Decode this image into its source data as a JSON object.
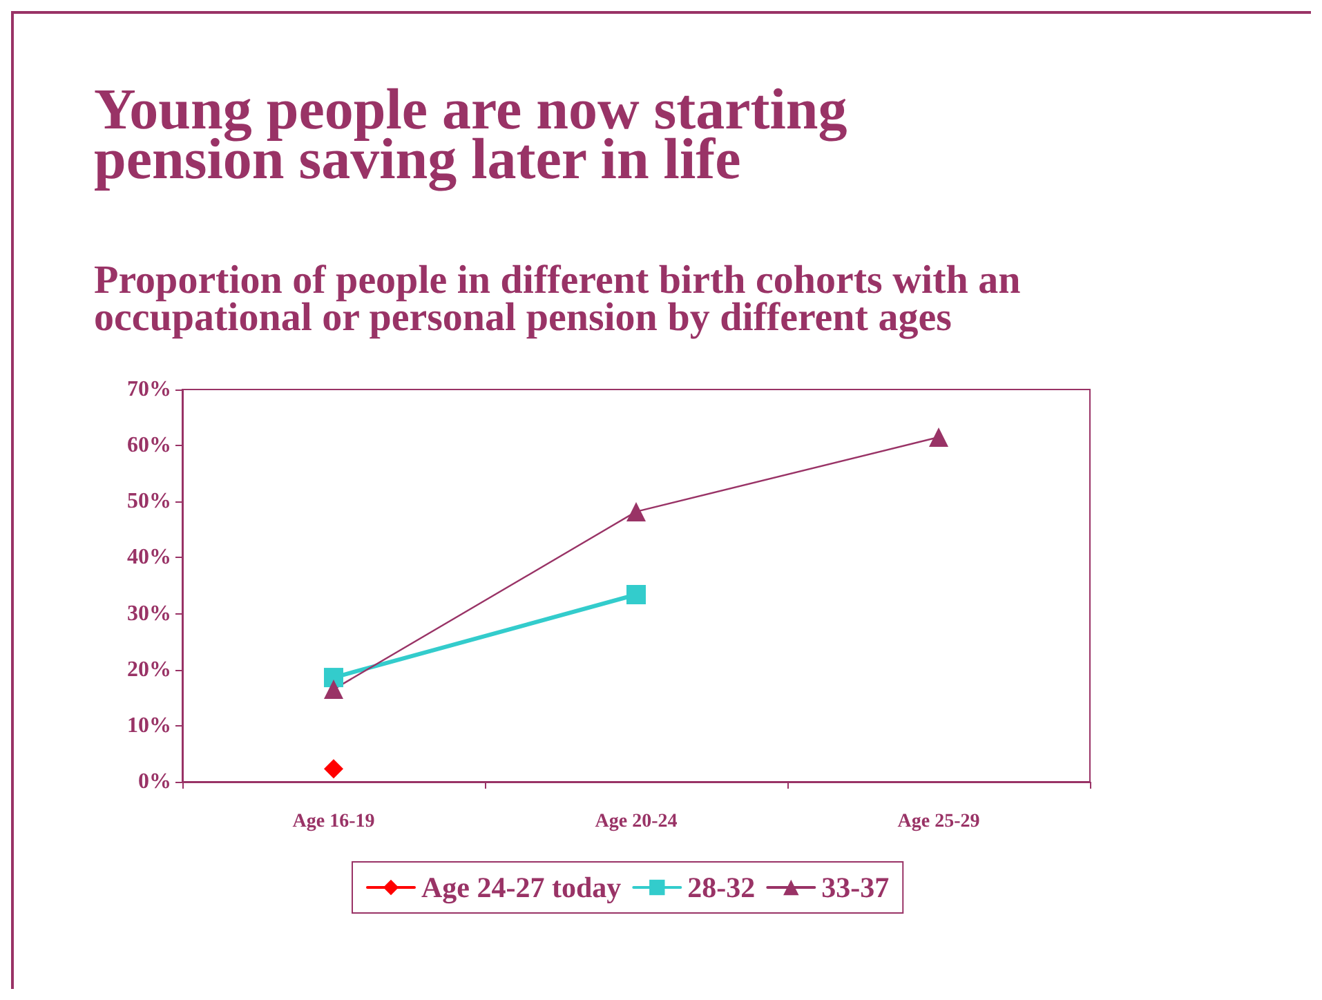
{
  "chart_data": {
    "type": "line",
    "title": "Young people are now starting pension saving later in life",
    "subtitle": "Proportion of people in different birth cohorts with an occupational or personal pension by different ages",
    "categories": [
      "Age 16-19",
      "Age 20-24",
      "Age 25-29"
    ],
    "series": [
      {
        "name": "Age 24-27 today",
        "color": "#ff0000",
        "marker": "diamond",
        "values": [
          2.3,
          null,
          null
        ]
      },
      {
        "name": "28-32",
        "color": "#33cccc",
        "marker": "square",
        "values": [
          18.6,
          33.4,
          null
        ]
      },
      {
        "name": "33-37",
        "color": "#993366",
        "marker": "triangle",
        "values": [
          16.5,
          48.2,
          61.5
        ]
      }
    ],
    "ylim": [
      0,
      70
    ],
    "yticks": [
      {
        "value": 0,
        "label": "0%"
      },
      {
        "value": 10,
        "label": "10%"
      },
      {
        "value": 20,
        "label": "20%"
      },
      {
        "value": 30,
        "label": "30%"
      },
      {
        "value": 40,
        "label": "40%"
      },
      {
        "value": 50,
        "label": "50%"
      },
      {
        "value": 60,
        "label": "60%"
      },
      {
        "value": 70,
        "label": "70%"
      }
    ],
    "grid": false,
    "legend": "bottom",
    "line_style": "solid"
  }
}
